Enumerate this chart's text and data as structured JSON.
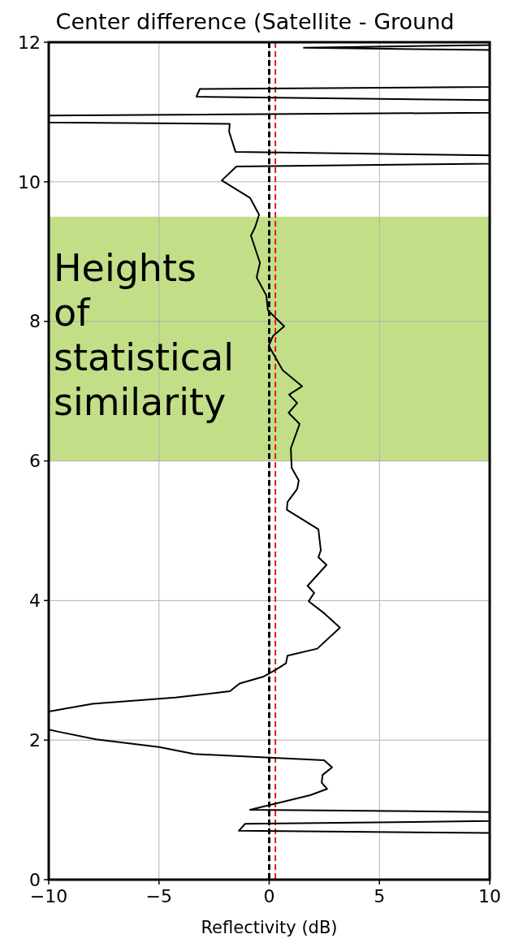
{
  "chart_data": {
    "type": "line",
    "title": "Center difference (Satellite - Ground",
    "xlabel": "Reflectivity (dB)",
    "xlim": [
      -10,
      10
    ],
    "xticks": [
      {
        "value": -10,
        "label": "−10"
      },
      {
        "value": -5,
        "label": "−5"
      },
      0,
      5,
      10
    ],
    "ylim": [
      0,
      12
    ],
    "yticks": [
      0,
      2,
      4,
      6,
      8,
      10,
      12
    ],
    "grid": true,
    "series": [
      {
        "color": "#000000",
        "x": [
          10,
          -1.38,
          -1.09,
          10,
          10,
          -0.87,
          1.86,
          2.63,
          2.38,
          2.42,
          2.85,
          2.49,
          0,
          -3.41,
          -4.99,
          -7.86,
          -9.56,
          -10,
          -10,
          -8.01,
          -4.25,
          -1.78,
          -1.34,
          -0.25,
          0.31,
          0.76,
          0.83,
          2.18,
          3.21,
          2.52,
          1.79,
          2.04,
          1.74,
          2.6,
          2.23,
          2.34,
          2.23,
          0.8,
          0.83,
          1.27,
          1.34,
          1.02,
          0.98,
          1.38,
          0.88,
          1.27,
          0.9,
          1.49,
          0.61,
          -0.02,
          0.17,
          0.68,
          -0.06,
          -0.13,
          -0.57,
          -0.42,
          -0.83,
          -0.64,
          -0.46,
          -0.87,
          -2.15,
          -1.49,
          10,
          10,
          -1.53,
          -1.82,
          -1.79,
          -10,
          -10,
          10,
          10,
          -3.3,
          -3.15,
          10,
          10,
          1.57,
          10
        ],
        "values": [
          0.67,
          0.7,
          0.8,
          0.84,
          0.97,
          1.0,
          1.21,
          1.3,
          1.39,
          1.5,
          1.61,
          1.71,
          1.75,
          1.8,
          1.9,
          2.01,
          2.12,
          2.15,
          2.41,
          2.52,
          2.61,
          2.7,
          2.81,
          2.91,
          3.01,
          3.1,
          3.21,
          3.31,
          3.61,
          3.81,
          3.99,
          4.11,
          4.21,
          4.51,
          4.62,
          4.72,
          5.02,
          5.3,
          5.41,
          5.6,
          5.72,
          5.9,
          6.18,
          6.53,
          6.69,
          6.83,
          6.95,
          7.07,
          7.3,
          7.65,
          7.79,
          7.93,
          8.16,
          8.37,
          8.63,
          8.84,
          9.23,
          9.35,
          9.53,
          9.77,
          10.02,
          10.22,
          10.26,
          10.38,
          10.43,
          10.72,
          10.83,
          10.85,
          10.95,
          10.99,
          11.17,
          11.22,
          11.33,
          11.36,
          11.89,
          11.92,
          11.96
        ]
      }
    ],
    "marker": "none",
    "line_style": "solid",
    "ref_lines": [
      {
        "axis": "x",
        "value": 0,
        "color": "#000000",
        "line_style": "dashed"
      },
      {
        "axis": "x",
        "value": 0.28,
        "color": "#e31a1c",
        "line_style": "dashed"
      }
    ],
    "bands": [
      {
        "axis": "y",
        "from": 6,
        "to": 9.5,
        "label": "Heights of statistical similarity",
        "color": "#c2df88"
      }
    ]
  }
}
